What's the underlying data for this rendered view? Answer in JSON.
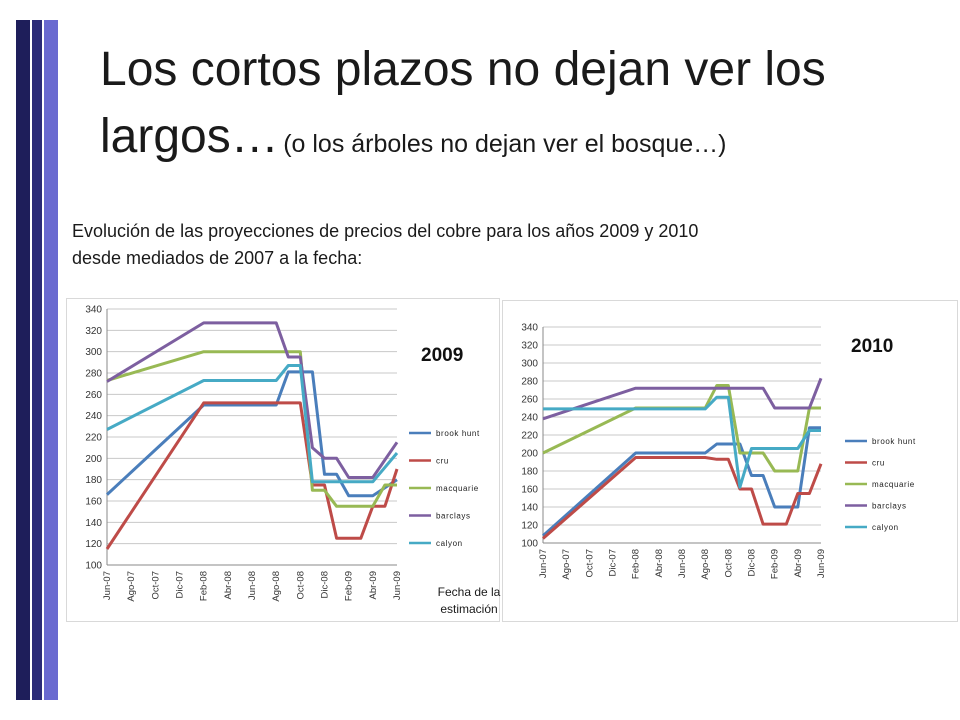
{
  "slide": {
    "title_main": "Los cortos plazos no dejan ver los largos…",
    "title_sub": "(o los árboles no dejan ver el bosque…)",
    "intro_line1": "Evolución de las proyecciones de precios del cobre para los años 2009 y 2010",
    "intro_line2": "desde mediados  de 2007 a la fecha:",
    "x_caption_line1": "Fecha de la",
    "x_caption_line2": "estimación",
    "colors": {
      "brook_hunt": "#4a7ebb",
      "cru": "#be4b48",
      "macquarie": "#98b954",
      "barclays": "#7d5fa0",
      "calyon": "#46aac5"
    }
  },
  "chart_data": [
    {
      "type": "line",
      "title": "2009",
      "xlabel": "",
      "ylabel": "",
      "categories": [
        "Jun-07",
        "Ago-07",
        "Oct-07",
        "Dic-07",
        "Feb-08",
        "Abr-08",
        "Jun-08",
        "Ago-08",
        "Oct-08",
        "Dic-08",
        "Feb-09",
        "Abr-09",
        "Jun-09"
      ],
      "ylim": [
        100,
        340
      ],
      "yticks": [
        100,
        120,
        140,
        160,
        180,
        200,
        220,
        240,
        260,
        280,
        300,
        320,
        340
      ],
      "grid": true,
      "legend": "right",
      "series": [
        {
          "name": "brook hunt",
          "color": "#4a7ebb",
          "points": [
            [
              0,
              166
            ],
            [
              4,
              250
            ],
            [
              7,
              250
            ],
            [
              7.5,
              281
            ],
            [
              8,
              281
            ],
            [
              8.5,
              281
            ],
            [
              9,
              185
            ],
            [
              9.5,
              185
            ],
            [
              10,
              165
            ],
            [
              11,
              165
            ],
            [
              12,
              180
            ]
          ]
        },
        {
          "name": "cru",
          "color": "#be4b48",
          "points": [
            [
              0,
              115
            ],
            [
              4,
              252
            ],
            [
              8,
              252
            ],
            [
              8.5,
              175
            ],
            [
              9,
              175
            ],
            [
              9.5,
              125
            ],
            [
              10.5,
              125
            ],
            [
              11,
              155
            ],
            [
              11.5,
              155
            ],
            [
              12,
              190
            ]
          ]
        },
        {
          "name": "macquarie",
          "color": "#98b954",
          "points": [
            [
              0,
              273
            ],
            [
              4,
              300
            ],
            [
              8,
              300
            ],
            [
              8.5,
              170
            ],
            [
              9,
              170
            ],
            [
              9.5,
              155
            ],
            [
              11,
              155
            ],
            [
              11.5,
              175
            ],
            [
              12,
              175
            ]
          ]
        },
        {
          "name": "barclays",
          "color": "#7d5fa0",
          "points": [
            [
              0,
              272
            ],
            [
              4,
              327
            ],
            [
              7,
              327
            ],
            [
              7.5,
              295
            ],
            [
              8,
              295
            ],
            [
              8.5,
              210
            ],
            [
              9,
              200
            ],
            [
              9.5,
              200
            ],
            [
              10,
              182
            ],
            [
              11,
              182
            ],
            [
              12,
              215
            ]
          ]
        },
        {
          "name": "calyon",
          "color": "#46aac5",
          "points": [
            [
              0,
              227
            ],
            [
              4,
              273
            ],
            [
              7,
              273
            ],
            [
              7.5,
              287
            ],
            [
              8,
              287
            ],
            [
              8.5,
              178
            ],
            [
              11,
              178
            ],
            [
              12,
              205
            ]
          ]
        }
      ]
    },
    {
      "type": "line",
      "title": "2010",
      "xlabel": "",
      "ylabel": "",
      "categories": [
        "Jun-07",
        "Ago-07",
        "Oct-07",
        "Dic-07",
        "Feb-08",
        "Abr-08",
        "Jun-08",
        "Ago-08",
        "Oct-08",
        "Dic-08",
        "Feb-09",
        "Abr-09",
        "Jun-09"
      ],
      "ylim": [
        100,
        340
      ],
      "yticks": [
        100,
        120,
        140,
        160,
        180,
        200,
        220,
        240,
        260,
        280,
        300,
        320,
        340
      ],
      "grid": true,
      "legend": "right",
      "series": [
        {
          "name": "brook hunt",
          "color": "#4a7ebb",
          "points": [
            [
              0,
              108
            ],
            [
              4,
              200
            ],
            [
              7,
              200
            ],
            [
              7.5,
              210
            ],
            [
              8,
              210
            ],
            [
              8.5,
              210
            ],
            [
              9,
              175
            ],
            [
              9.5,
              175
            ],
            [
              10,
              140
            ],
            [
              11,
              140
            ],
            [
              11.5,
              228
            ],
            [
              12,
              228
            ]
          ]
        },
        {
          "name": "cru",
          "color": "#be4b48",
          "points": [
            [
              0,
              105
            ],
            [
              4,
              195
            ],
            [
              7,
              195
            ],
            [
              7.5,
              193
            ],
            [
              8,
              193
            ],
            [
              8.5,
              160
            ],
            [
              9,
              160
            ],
            [
              9.5,
              121
            ],
            [
              10.5,
              121
            ],
            [
              11,
              155
            ],
            [
              11.5,
              155
            ],
            [
              12,
              188
            ]
          ]
        },
        {
          "name": "macquarie",
          "color": "#98b954",
          "points": [
            [
              0,
              200
            ],
            [
              4,
              250
            ],
            [
              7,
              250
            ],
            [
              7.5,
              275
            ],
            [
              8,
              275
            ],
            [
              8.5,
              200
            ],
            [
              9,
              200
            ],
            [
              9.5,
              200
            ],
            [
              10,
              180
            ],
            [
              11,
              180
            ],
            [
              11.5,
              250
            ],
            [
              12,
              250
            ]
          ]
        },
        {
          "name": "barclays",
          "color": "#7d5fa0",
          "points": [
            [
              0,
              238
            ],
            [
              4,
              272
            ],
            [
              9.5,
              272
            ],
            [
              10,
              250
            ],
            [
              11.5,
              250
            ],
            [
              12,
              283
            ]
          ]
        },
        {
          "name": "calyon",
          "color": "#46aac5",
          "points": [
            [
              0,
              249
            ],
            [
              7,
              249
            ],
            [
              7.5,
              262
            ],
            [
              8,
              262
            ],
            [
              8.5,
              162
            ],
            [
              9,
              205
            ],
            [
              11,
              205
            ],
            [
              11.5,
              225
            ],
            [
              12,
              225
            ]
          ]
        }
      ]
    }
  ]
}
